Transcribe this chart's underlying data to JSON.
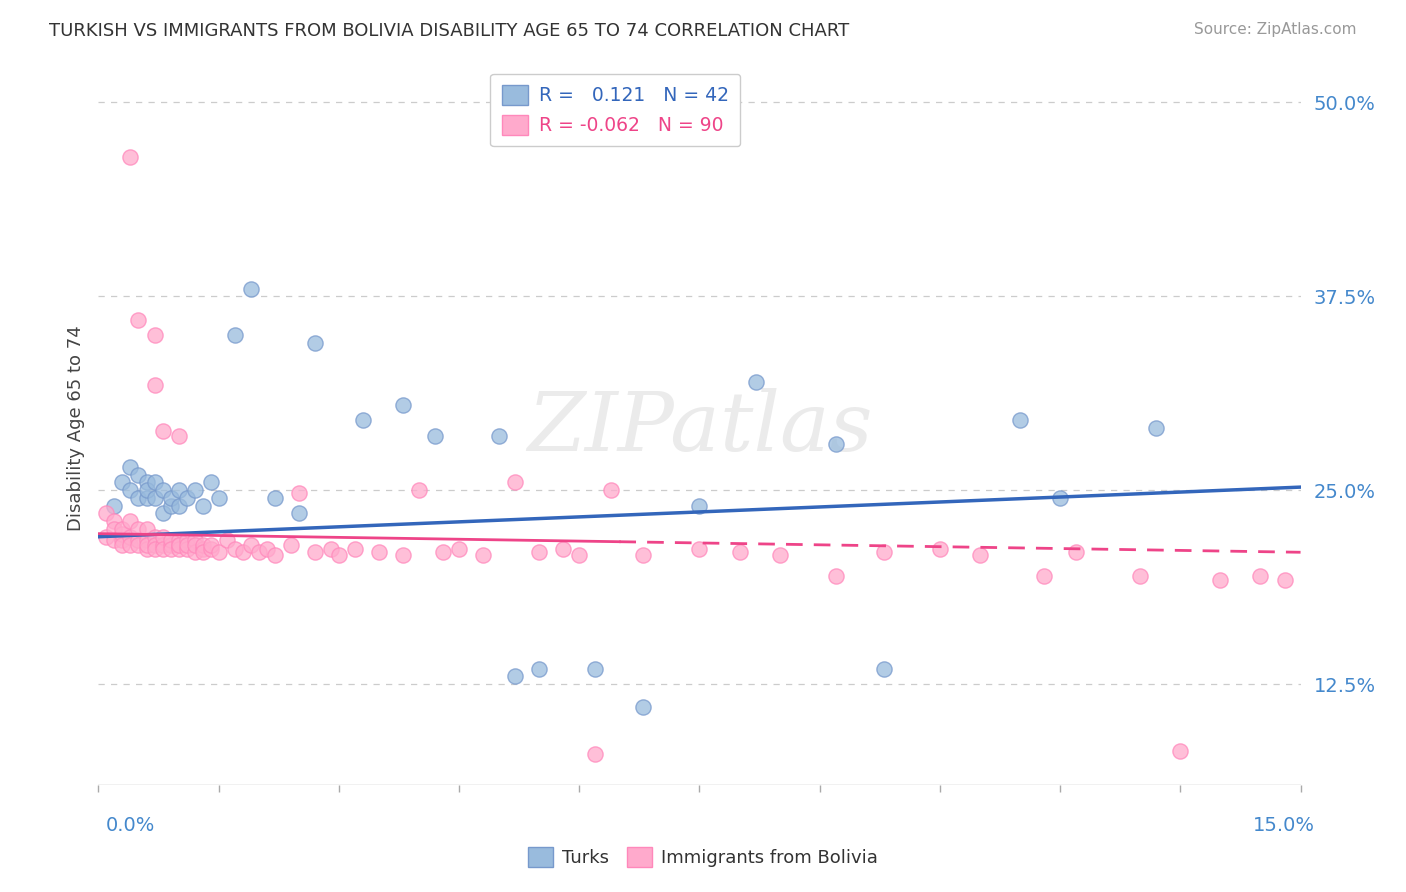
{
  "title": "TURKISH VS IMMIGRANTS FROM BOLIVIA DISABILITY AGE 65 TO 74 CORRELATION CHART",
  "source": "Source: ZipAtlas.com",
  "ylabel": "Disability Age 65 to 74",
  "turks_R": 0.121,
  "turks_N": 42,
  "bolivia_R": -0.062,
  "bolivia_N": 90,
  "xlim": [
    0.0,
    0.15
  ],
  "ylim": [
    0.06,
    0.52
  ],
  "yticks": [
    0.125,
    0.25,
    0.375,
    0.5
  ],
  "ytick_labels": [
    "12.5%",
    "25.0%",
    "37.5%",
    "50.0%"
  ],
  "turks_color": "#99BBDD",
  "bolivia_color": "#FFAACC",
  "turks_marker_edge": "#7799CC",
  "bolivia_marker_edge": "#FF88BB",
  "turks_line_color": "#3366BB",
  "bolivia_line_color": "#EE4488",
  "watermark": "ZIPatlas",
  "background_color": "#FFFFFF",
  "grid_color": "#CCCCCC",
  "turks_x": [
    0.002,
    0.003,
    0.004,
    0.004,
    0.005,
    0.005,
    0.006,
    0.006,
    0.006,
    0.007,
    0.007,
    0.008,
    0.008,
    0.009,
    0.009,
    0.01,
    0.01,
    0.011,
    0.012,
    0.013,
    0.014,
    0.015,
    0.017,
    0.019,
    0.022,
    0.025,
    0.027,
    0.033,
    0.038,
    0.042,
    0.05,
    0.055,
    0.062,
    0.068,
    0.075,
    0.082,
    0.092,
    0.115,
    0.12,
    0.132,
    0.052,
    0.098
  ],
  "turks_y": [
    0.24,
    0.255,
    0.265,
    0.25,
    0.245,
    0.26,
    0.255,
    0.245,
    0.25,
    0.255,
    0.245,
    0.235,
    0.25,
    0.24,
    0.245,
    0.25,
    0.24,
    0.245,
    0.25,
    0.24,
    0.255,
    0.245,
    0.35,
    0.38,
    0.245,
    0.235,
    0.345,
    0.295,
    0.305,
    0.285,
    0.285,
    0.135,
    0.135,
    0.11,
    0.24,
    0.32,
    0.28,
    0.295,
    0.245,
    0.29,
    0.13,
    0.135
  ],
  "bolivia_x": [
    0.001,
    0.001,
    0.002,
    0.002,
    0.002,
    0.003,
    0.003,
    0.003,
    0.003,
    0.004,
    0.004,
    0.004,
    0.004,
    0.005,
    0.005,
    0.005,
    0.005,
    0.006,
    0.006,
    0.006,
    0.006,
    0.007,
    0.007,
    0.007,
    0.007,
    0.007,
    0.008,
    0.008,
    0.008,
    0.008,
    0.009,
    0.009,
    0.009,
    0.01,
    0.01,
    0.01,
    0.01,
    0.01,
    0.011,
    0.011,
    0.011,
    0.012,
    0.012,
    0.012,
    0.013,
    0.013,
    0.013,
    0.014,
    0.014,
    0.015,
    0.016,
    0.017,
    0.018,
    0.019,
    0.02,
    0.021,
    0.022,
    0.024,
    0.025,
    0.027,
    0.029,
    0.03,
    0.032,
    0.035,
    0.038,
    0.04,
    0.043,
    0.045,
    0.048,
    0.052,
    0.055,
    0.058,
    0.06,
    0.062,
    0.064,
    0.068,
    0.075,
    0.08,
    0.085,
    0.092,
    0.098,
    0.105,
    0.11,
    0.118,
    0.122,
    0.13,
    0.135,
    0.14,
    0.145,
    0.148
  ],
  "bolivia_y": [
    0.235,
    0.22,
    0.23,
    0.218,
    0.225,
    0.218,
    0.222,
    0.215,
    0.225,
    0.22,
    0.215,
    0.23,
    0.465,
    0.218,
    0.225,
    0.215,
    0.36,
    0.218,
    0.225,
    0.212,
    0.215,
    0.22,
    0.215,
    0.35,
    0.212,
    0.318,
    0.215,
    0.22,
    0.212,
    0.288,
    0.215,
    0.218,
    0.212,
    0.218,
    0.215,
    0.212,
    0.215,
    0.285,
    0.218,
    0.212,
    0.215,
    0.218,
    0.21,
    0.215,
    0.212,
    0.215,
    0.21,
    0.212,
    0.215,
    0.21,
    0.218,
    0.212,
    0.21,
    0.215,
    0.21,
    0.212,
    0.208,
    0.215,
    0.248,
    0.21,
    0.212,
    0.208,
    0.212,
    0.21,
    0.208,
    0.25,
    0.21,
    0.212,
    0.208,
    0.255,
    0.21,
    0.212,
    0.208,
    0.08,
    0.25,
    0.208,
    0.212,
    0.21,
    0.208,
    0.195,
    0.21,
    0.212,
    0.208,
    0.195,
    0.21,
    0.195,
    0.082,
    0.192,
    0.195,
    0.192
  ]
}
